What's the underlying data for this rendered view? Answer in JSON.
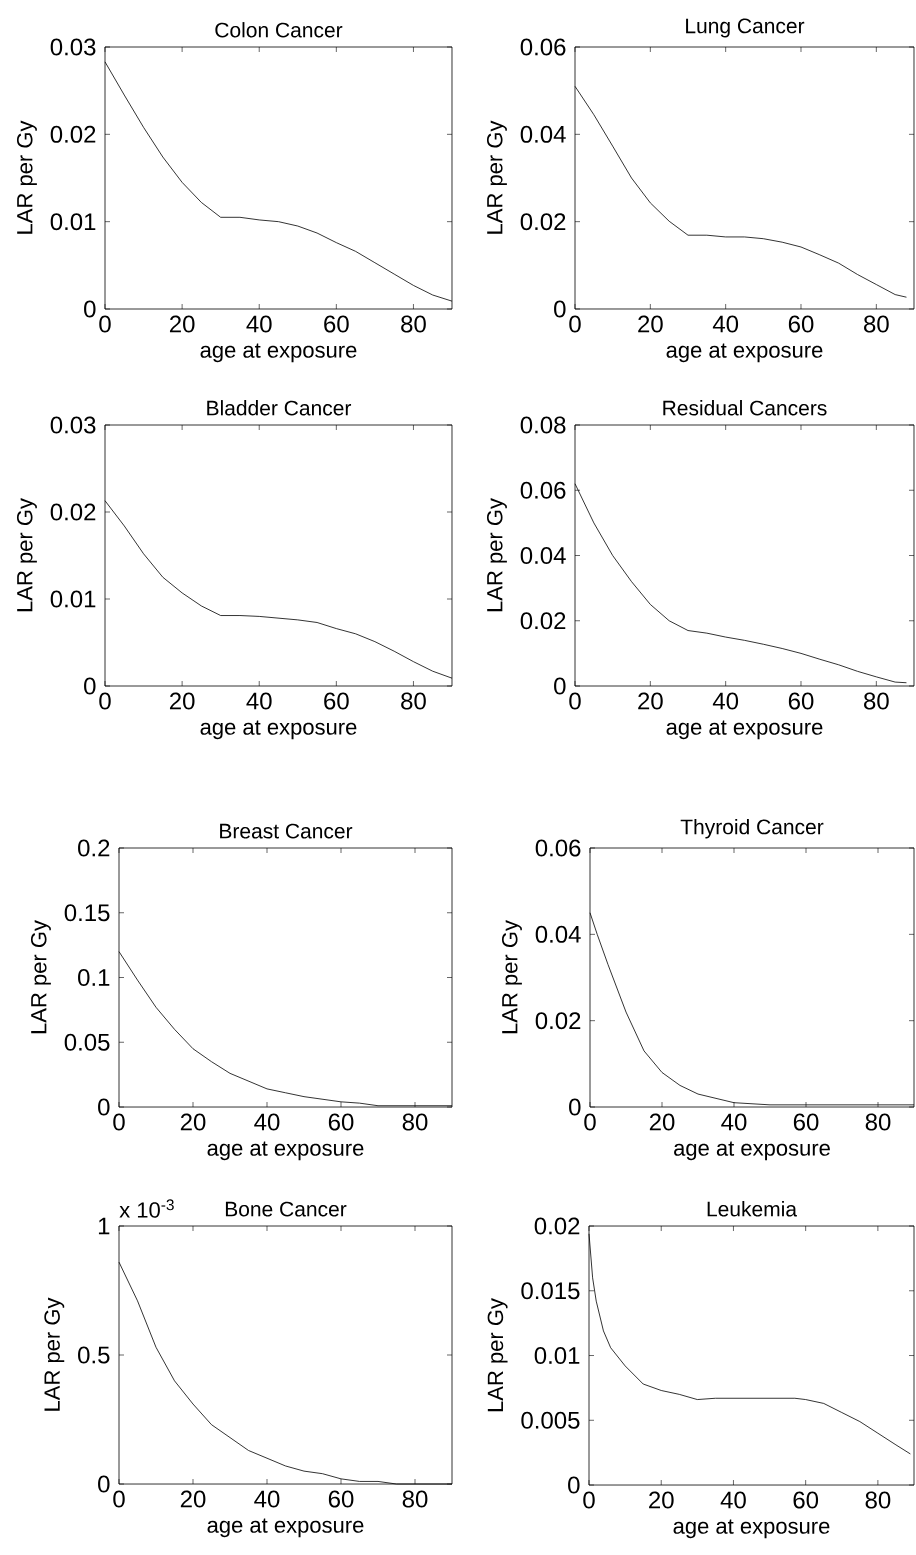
{
  "chart_data": [
    {
      "type": "line",
      "title": "Colon Cancer",
      "xlabel": "age at exposure",
      "ylabel": "LAR per Gy",
      "color": "#000000",
      "xlim": [
        0,
        90
      ],
      "ylim": [
        0,
        0.03
      ],
      "xticks": [
        0,
        20,
        40,
        60,
        80
      ],
      "yticks": [
        0,
        0.01,
        0.02,
        0.03
      ],
      "x": [
        0,
        5,
        10,
        15,
        20,
        25,
        30,
        35,
        40,
        45,
        50,
        55,
        60,
        65,
        70,
        75,
        80,
        85,
        90
      ],
      "values": [
        0.0283,
        0.0245,
        0.0208,
        0.0174,
        0.0145,
        0.0122,
        0.0105,
        0.0105,
        0.0102,
        0.01,
        0.0095,
        0.0087,
        0.0076,
        0.0066,
        0.0053,
        0.004,
        0.0027,
        0.0016,
        0.0009
      ]
    },
    {
      "type": "line",
      "title": "Lung Cancer",
      "xlabel": "age at exposure",
      "ylabel": "LAR per Gy",
      "color": "#000000",
      "xlim": [
        0,
        90
      ],
      "ylim": [
        0,
        0.06
      ],
      "xticks": [
        0,
        20,
        40,
        60,
        80
      ],
      "yticks": [
        0,
        0.02,
        0.04,
        0.06
      ],
      "x": [
        0,
        5,
        10,
        15,
        20,
        25,
        30,
        35,
        40,
        45,
        50,
        55,
        60,
        65,
        70,
        75,
        80,
        85,
        88
      ],
      "values": [
        0.051,
        0.0445,
        0.0373,
        0.03,
        0.0243,
        0.0201,
        0.0169,
        0.0169,
        0.0165,
        0.0165,
        0.0161,
        0.0153,
        0.0142,
        0.0124,
        0.0105,
        0.0079,
        0.0056,
        0.0033,
        0.0027
      ]
    },
    {
      "type": "line",
      "title": "Bladder Cancer",
      "xlabel": "age at exposure",
      "ylabel": "LAR per Gy",
      "color": "#000000",
      "xlim": [
        0,
        90
      ],
      "ylim": [
        0,
        0.03
      ],
      "xticks": [
        0,
        20,
        40,
        60,
        80
      ],
      "yticks": [
        0,
        0.01,
        0.02,
        0.03
      ],
      "x": [
        0,
        5,
        10,
        15,
        20,
        25,
        30,
        35,
        40,
        45,
        50,
        55,
        60,
        65,
        70,
        75,
        80,
        85,
        90
      ],
      "values": [
        0.0213,
        0.0184,
        0.0152,
        0.0125,
        0.0107,
        0.0092,
        0.0081,
        0.0081,
        0.008,
        0.0078,
        0.0076,
        0.0073,
        0.0066,
        0.006,
        0.0051,
        0.004,
        0.0028,
        0.0017,
        0.0009
      ]
    },
    {
      "type": "line",
      "title": "Residual Cancers",
      "xlabel": "age at exposure",
      "ylabel": "LAR per Gy",
      "color": "#000000",
      "xlim": [
        0,
        90
      ],
      "ylim": [
        0,
        0.08
      ],
      "xticks": [
        0,
        20,
        40,
        60,
        80
      ],
      "yticks": [
        0,
        0.02,
        0.04,
        0.06,
        0.08
      ],
      "x": [
        0,
        5,
        10,
        15,
        20,
        25,
        30,
        35,
        40,
        45,
        50,
        55,
        60,
        65,
        70,
        75,
        80,
        85,
        88
      ],
      "values": [
        0.062,
        0.05,
        0.04,
        0.032,
        0.025,
        0.02,
        0.017,
        0.0162,
        0.015,
        0.014,
        0.0128,
        0.0115,
        0.01,
        0.0082,
        0.0065,
        0.0045,
        0.0028,
        0.0012,
        0.001
      ]
    },
    {
      "type": "line",
      "title": "Breast Cancer",
      "xlabel": "age at exposure",
      "ylabel": "LAR per Gy",
      "color": "#000000",
      "xlim": [
        0,
        90
      ],
      "ylim": [
        0,
        0.2
      ],
      "xticks": [
        0,
        20,
        40,
        60,
        80
      ],
      "yticks": [
        0,
        0.05,
        0.1,
        0.15,
        0.2
      ],
      "x": [
        0,
        5,
        10,
        15,
        20,
        25,
        30,
        35,
        40,
        45,
        50,
        55,
        60,
        65,
        70,
        80,
        90
      ],
      "values": [
        0.12,
        0.098,
        0.077,
        0.06,
        0.045,
        0.035,
        0.026,
        0.02,
        0.014,
        0.011,
        0.008,
        0.006,
        0.004,
        0.003,
        0.001,
        0.001,
        0.001
      ]
    },
    {
      "type": "line",
      "title": "Thyroid Cancer",
      "xlabel": "age at exposure",
      "ylabel": "LAR per Gy",
      "color": "#000000",
      "xlim": [
        0,
        90
      ],
      "ylim": [
        0,
        0.06
      ],
      "xticks": [
        0,
        20,
        40,
        60,
        80
      ],
      "yticks": [
        0,
        0.02,
        0.04,
        0.06
      ],
      "x": [
        0,
        2,
        5,
        10,
        15,
        20,
        25,
        30,
        35,
        40,
        50,
        60,
        90
      ],
      "values": [
        0.045,
        0.04,
        0.033,
        0.022,
        0.013,
        0.008,
        0.005,
        0.003,
        0.002,
        0.001,
        0.0005,
        0.0005,
        0.0005
      ]
    },
    {
      "type": "line",
      "title": "Bone Cancer",
      "xlabel": "age at exposure",
      "ylabel": "LAR per Gy",
      "color": "#000000",
      "xlim": [
        0,
        90
      ],
      "ylim": [
        0,
        1
      ],
      "xticks": [
        0,
        20,
        40,
        60,
        80
      ],
      "yticks": [
        0,
        0.5,
        1
      ],
      "annotations": [
        "x 10$^{-3}$"
      ],
      "x": [
        0,
        5,
        10,
        15,
        20,
        25,
        30,
        35,
        40,
        45,
        50,
        55,
        60,
        65,
        70,
        75,
        80,
        90
      ],
      "values": [
        0.86,
        0.71,
        0.53,
        0.4,
        0.31,
        0.23,
        0.18,
        0.13,
        0.1,
        0.07,
        0.05,
        0.04,
        0.02,
        0.01,
        0.01,
        0.0,
        0.0,
        0.0
      ]
    },
    {
      "type": "line",
      "title": "Leukemia",
      "xlabel": "age at exposure",
      "ylabel": "LAR per Gy",
      "color": "#000000",
      "xlim": [
        0,
        90
      ],
      "ylim": [
        0,
        0.02
      ],
      "xticks": [
        0,
        20,
        40,
        60,
        80
      ],
      "yticks": [
        0,
        0.005,
        0.01,
        0.015,
        0.02
      ],
      "x": [
        0,
        1,
        2,
        4,
        6,
        10,
        15,
        20,
        25,
        30,
        35,
        40,
        57,
        60,
        65,
        70,
        75,
        80,
        85,
        89
      ],
      "values": [
        0.0194,
        0.016,
        0.0142,
        0.0119,
        0.0106,
        0.0092,
        0.0078,
        0.0073,
        0.007,
        0.0066,
        0.0067,
        0.0067,
        0.0067,
        0.0066,
        0.0063,
        0.0056,
        0.0049,
        0.004,
        0.0031,
        0.0024
      ]
    }
  ]
}
